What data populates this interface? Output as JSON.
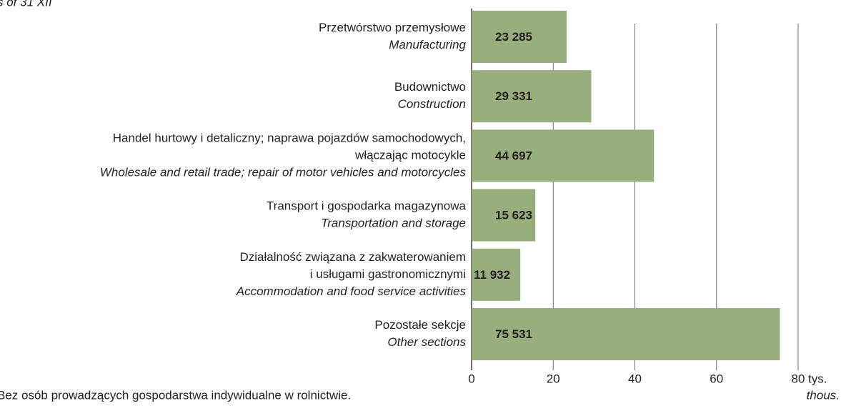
{
  "chart_data": {
    "type": "bar",
    "orientation": "horizontal",
    "title": "s of 31 XII",
    "categories": [
      {
        "pl": [
          "Przetwórstwo przemysłowe"
        ],
        "en": [
          "Manufacturing"
        ]
      },
      {
        "pl": [
          "Budownictwo"
        ],
        "en": [
          "Construction"
        ]
      },
      {
        "pl": [
          "Handel hurtowy i detaliczny; naprawa pojazdów samochodowych,",
          "włączając motocykle"
        ],
        "en": [
          "Wholesale and retail trade; repair of motor vehicles and motorcycles"
        ]
      },
      {
        "pl": [
          "Transport i gospodarka magazynowa"
        ],
        "en": [
          "Transportation and storage"
        ]
      },
      {
        "pl": [
          "Działalność związana z zakwaterowaniem",
          "i usługami gastronomicznymi"
        ],
        "en": [
          "Accommodation and food service activities"
        ]
      },
      {
        "pl": [
          "Pozostałe sekcje"
        ],
        "en": [
          "Other sections"
        ]
      }
    ],
    "values": [
      23.285,
      29.331,
      44.697,
      15.623,
      11.932,
      75.531
    ],
    "value_labels": [
      "23 285",
      "29 331",
      "44 697",
      "15 623",
      "11 932",
      "75 531"
    ],
    "color": "#98ae7c",
    "xlim": [
      0,
      80
    ],
    "xticks": [
      0,
      20,
      40,
      60,
      80
    ],
    "grid": true,
    "x_unit": "tys.",
    "x_unit_en": "thous.",
    "footnote": "Bez osób prowadzących gospodarstwa indywidualne w rolnictwie."
  }
}
